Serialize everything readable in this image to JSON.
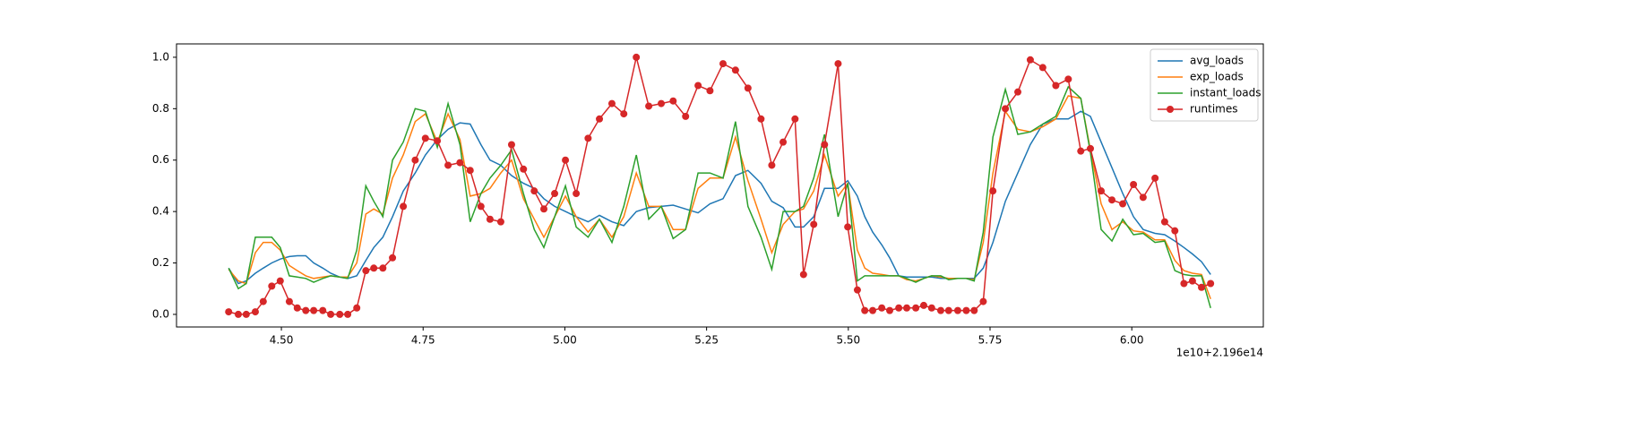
{
  "chart_data": {
    "type": "line",
    "x": [
      4.407,
      4.424,
      4.438,
      4.454,
      4.468,
      4.483,
      4.498,
      4.514,
      4.528,
      4.543,
      4.557,
      4.573,
      4.587,
      4.603,
      4.617,
      4.633,
      4.649,
      4.663,
      4.679,
      4.696,
      4.715,
      4.736,
      4.754,
      4.775,
      4.794,
      4.815,
      4.833,
      4.852,
      4.868,
      4.887,
      4.906,
      4.927,
      4.946,
      4.963,
      4.982,
      5.001,
      5.02,
      5.041,
      5.061,
      5.083,
      5.104,
      5.126,
      5.148,
      5.17,
      5.191,
      5.213,
      5.235,
      5.256,
      5.279,
      5.301,
      5.323,
      5.346,
      5.365,
      5.385,
      5.406,
      5.421,
      5.439,
      5.458,
      5.482,
      5.499,
      5.516,
      5.529,
      5.543,
      5.559,
      5.573,
      5.589,
      5.603,
      5.619,
      5.633,
      5.647,
      5.663,
      5.677,
      5.693,
      5.708,
      5.722,
      5.738,
      5.755,
      5.777,
      5.799,
      5.821,
      5.843,
      5.866,
      5.888,
      5.91,
      5.927,
      5.946,
      5.965,
      5.984,
      6.003,
      6.02,
      6.041,
      6.058,
      6.076,
      6.092,
      6.107,
      6.123,
      6.139
    ],
    "series": [
      {
        "name": "avg_loads",
        "color": "#1f77b4",
        "values": [
          0.18,
          0.12,
          0.13,
          0.16,
          0.18,
          0.2,
          0.215,
          0.225,
          0.228,
          0.228,
          0.2,
          0.18,
          0.16,
          0.145,
          0.14,
          0.15,
          0.21,
          0.26,
          0.3,
          0.38,
          0.48,
          0.55,
          0.62,
          0.68,
          0.72,
          0.745,
          0.74,
          0.66,
          0.6,
          0.58,
          0.54,
          0.51,
          0.49,
          0.45,
          0.42,
          0.4,
          0.38,
          0.36,
          0.385,
          0.36,
          0.345,
          0.4,
          0.415,
          0.42,
          0.425,
          0.41,
          0.395,
          0.43,
          0.45,
          0.54,
          0.56,
          0.51,
          0.44,
          0.415,
          0.34,
          0.34,
          0.38,
          0.49,
          0.49,
          0.52,
          0.46,
          0.38,
          0.32,
          0.27,
          0.22,
          0.15,
          0.145,
          0.145,
          0.145,
          0.145,
          0.14,
          0.14,
          0.14,
          0.14,
          0.14,
          0.18,
          0.28,
          0.44,
          0.55,
          0.66,
          0.74,
          0.76,
          0.76,
          0.79,
          0.77,
          0.67,
          0.57,
          0.47,
          0.38,
          0.33,
          0.315,
          0.31,
          0.285,
          0.26,
          0.235,
          0.205,
          0.155
        ]
      },
      {
        "name": "exp_loads",
        "color": "#ff7f0e",
        "values": [
          0.175,
          0.13,
          0.12,
          0.24,
          0.28,
          0.28,
          0.25,
          0.19,
          0.17,
          0.15,
          0.14,
          0.145,
          0.15,
          0.145,
          0.145,
          0.2,
          0.39,
          0.41,
          0.39,
          0.53,
          0.62,
          0.75,
          0.78,
          0.67,
          0.78,
          0.68,
          0.46,
          0.47,
          0.49,
          0.55,
          0.6,
          0.45,
          0.37,
          0.3,
          0.38,
          0.46,
          0.38,
          0.32,
          0.37,
          0.3,
          0.38,
          0.55,
          0.42,
          0.42,
          0.33,
          0.33,
          0.49,
          0.53,
          0.53,
          0.69,
          0.52,
          0.37,
          0.24,
          0.35,
          0.4,
          0.41,
          0.48,
          0.62,
          0.46,
          0.51,
          0.25,
          0.18,
          0.16,
          0.155,
          0.15,
          0.15,
          0.135,
          0.13,
          0.14,
          0.15,
          0.145,
          0.14,
          0.14,
          0.14,
          0.135,
          0.28,
          0.55,
          0.79,
          0.72,
          0.71,
          0.73,
          0.76,
          0.85,
          0.84,
          0.64,
          0.43,
          0.33,
          0.36,
          0.325,
          0.32,
          0.29,
          0.29,
          0.21,
          0.17,
          0.16,
          0.155,
          0.06
        ]
      },
      {
        "name": "instant_loads",
        "color": "#2ca02c",
        "values": [
          0.18,
          0.1,
          0.12,
          0.3,
          0.3,
          0.3,
          0.26,
          0.15,
          0.145,
          0.14,
          0.125,
          0.14,
          0.15,
          0.145,
          0.14,
          0.25,
          0.5,
          0.44,
          0.38,
          0.6,
          0.67,
          0.8,
          0.79,
          0.65,
          0.82,
          0.66,
          0.36,
          0.47,
          0.53,
          0.58,
          0.64,
          0.47,
          0.33,
          0.26,
          0.38,
          0.5,
          0.34,
          0.3,
          0.37,
          0.28,
          0.42,
          0.62,
          0.37,
          0.42,
          0.295,
          0.33,
          0.55,
          0.55,
          0.53,
          0.75,
          0.42,
          0.3,
          0.175,
          0.4,
          0.4,
          0.42,
          0.53,
          0.7,
          0.38,
          0.51,
          0.13,
          0.15,
          0.15,
          0.15,
          0.15,
          0.15,
          0.14,
          0.125,
          0.14,
          0.15,
          0.15,
          0.135,
          0.14,
          0.14,
          0.13,
          0.32,
          0.69,
          0.875,
          0.7,
          0.71,
          0.74,
          0.77,
          0.885,
          0.84,
          0.63,
          0.33,
          0.285,
          0.37,
          0.31,
          0.315,
          0.28,
          0.285,
          0.17,
          0.155,
          0.15,
          0.15,
          0.025
        ]
      },
      {
        "name": "runtimes",
        "color": "#d62728",
        "marker": "o",
        "values": [
          0.01,
          0,
          0,
          0.01,
          0.05,
          0.11,
          0.13,
          0.05,
          0.025,
          0.015,
          0.015,
          0.015,
          0,
          0,
          0,
          0.025,
          0.17,
          0.18,
          0.18,
          0.22,
          0.42,
          0.6,
          0.685,
          0.675,
          0.58,
          0.59,
          0.56,
          0.42,
          0.37,
          0.36,
          0.66,
          0.565,
          0.48,
          0.41,
          0.47,
          0.6,
          0.47,
          0.685,
          0.76,
          0.82,
          0.78,
          1.0,
          0.81,
          0.82,
          0.83,
          0.77,
          0.89,
          0.87,
          0.975,
          0.95,
          0.88,
          0.76,
          0.58,
          0.67,
          0.76,
          0.155,
          0.35,
          0.66,
          0.975,
          0.34,
          0.095,
          0.015,
          0.015,
          0.025,
          0.015,
          0.025,
          0.025,
          0.025,
          0.035,
          0.025,
          0.015,
          0.015,
          0.015,
          0.015,
          0.015,
          0.05,
          0.48,
          0.8,
          0.865,
          0.99,
          0.96,
          0.89,
          0.915,
          0.635,
          0.645,
          0.48,
          0.445,
          0.43,
          0.505,
          0.455,
          0.53,
          0.36,
          0.325,
          0.12,
          0.13,
          0.105,
          0.12
        ]
      }
    ],
    "xlim": [
      4.315,
      6.232
    ],
    "ylim": [
      -0.049,
      1.052
    ],
    "xticks": [
      {
        "value": 4.5,
        "label": "4.50"
      },
      {
        "value": 4.75,
        "label": "4.75"
      },
      {
        "value": 5.0,
        "label": "5.00"
      },
      {
        "value": 5.25,
        "label": "5.25"
      },
      {
        "value": 5.5,
        "label": "5.50"
      },
      {
        "value": 5.75,
        "label": "5.75"
      },
      {
        "value": 6.0,
        "label": "6.00"
      }
    ],
    "yticks": [
      {
        "value": 0,
        "label": "0.0"
      },
      0.2,
      0.4,
      0.6,
      0.8,
      {
        "value": 1,
        "label": "1.0"
      }
    ],
    "x_offset_label": "1e10+2.196e14",
    "legend": "upper right"
  }
}
